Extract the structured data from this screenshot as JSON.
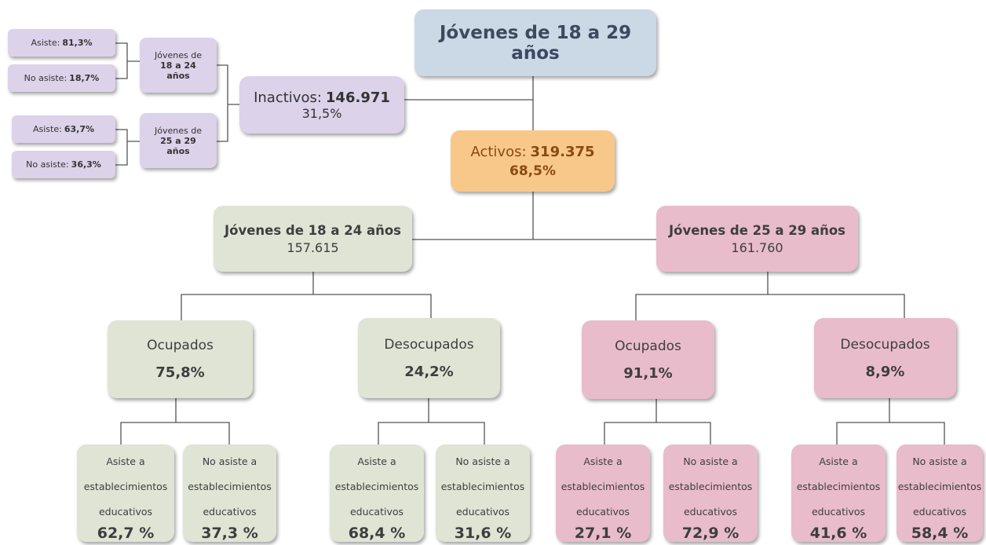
{
  "root": {
    "title": "Jóvenes de 18 a 29 años"
  },
  "inactivos": {
    "label": "Inactivos:",
    "value": "146.971",
    "share": "31,5%",
    "groups": [
      {
        "prefix": "Jóvenes de",
        "range": "18 a 24",
        "unit": "años",
        "asiste": {
          "label": "Asiste:",
          "share": "81,3%"
        },
        "no_asiste": {
          "label": "No asiste:",
          "share": "18,7%"
        }
      },
      {
        "prefix": "Jóvenes de",
        "range": "25 a 29",
        "unit": "años",
        "asiste": {
          "label": "Asiste:",
          "share": "63,7%"
        },
        "no_asiste": {
          "label": "No asiste:",
          "share": "36,3%"
        }
      }
    ]
  },
  "activos": {
    "label": "Activos:",
    "value": "319.375",
    "share": "68,5%"
  },
  "groups": [
    {
      "title": "Jóvenes de 18 a 24 años",
      "total": "157.615",
      "status": [
        {
          "label": "Ocupados",
          "share": "75,8%",
          "education": [
            {
              "label": "Asiste a establecimientos educativos",
              "share": "62,7 %"
            },
            {
              "label": "No asiste a establecimientos educativos",
              "share": "37,3 %"
            }
          ]
        },
        {
          "label": "Desocupados",
          "share": "24,2%",
          "education": [
            {
              "label": "Asiste a establecimientos educativos",
              "share": "68,4 %"
            },
            {
              "label": "No asiste a establecimientos educativos",
              "share": "31,6 %"
            }
          ]
        }
      ]
    },
    {
      "title": "Jóvenes de 25 a 29 años",
      "total": "161.760",
      "status": [
        {
          "label": "Ocupados",
          "share": "91,1%",
          "education": [
            {
              "label": "Asiste a establecimientos educativos",
              "share": "27,1 %"
            },
            {
              "label": "No asiste a establecimientos educativos",
              "share": "72,9 %"
            }
          ]
        },
        {
          "label": "Desocupados",
          "share": "8,9%",
          "education": [
            {
              "label": "Asiste a establecimientos educativos",
              "share": "41,6 %"
            },
            {
              "label": "No asiste a establecimientos educativos",
              "share": "58,4 %"
            }
          ]
        }
      ]
    }
  ]
}
